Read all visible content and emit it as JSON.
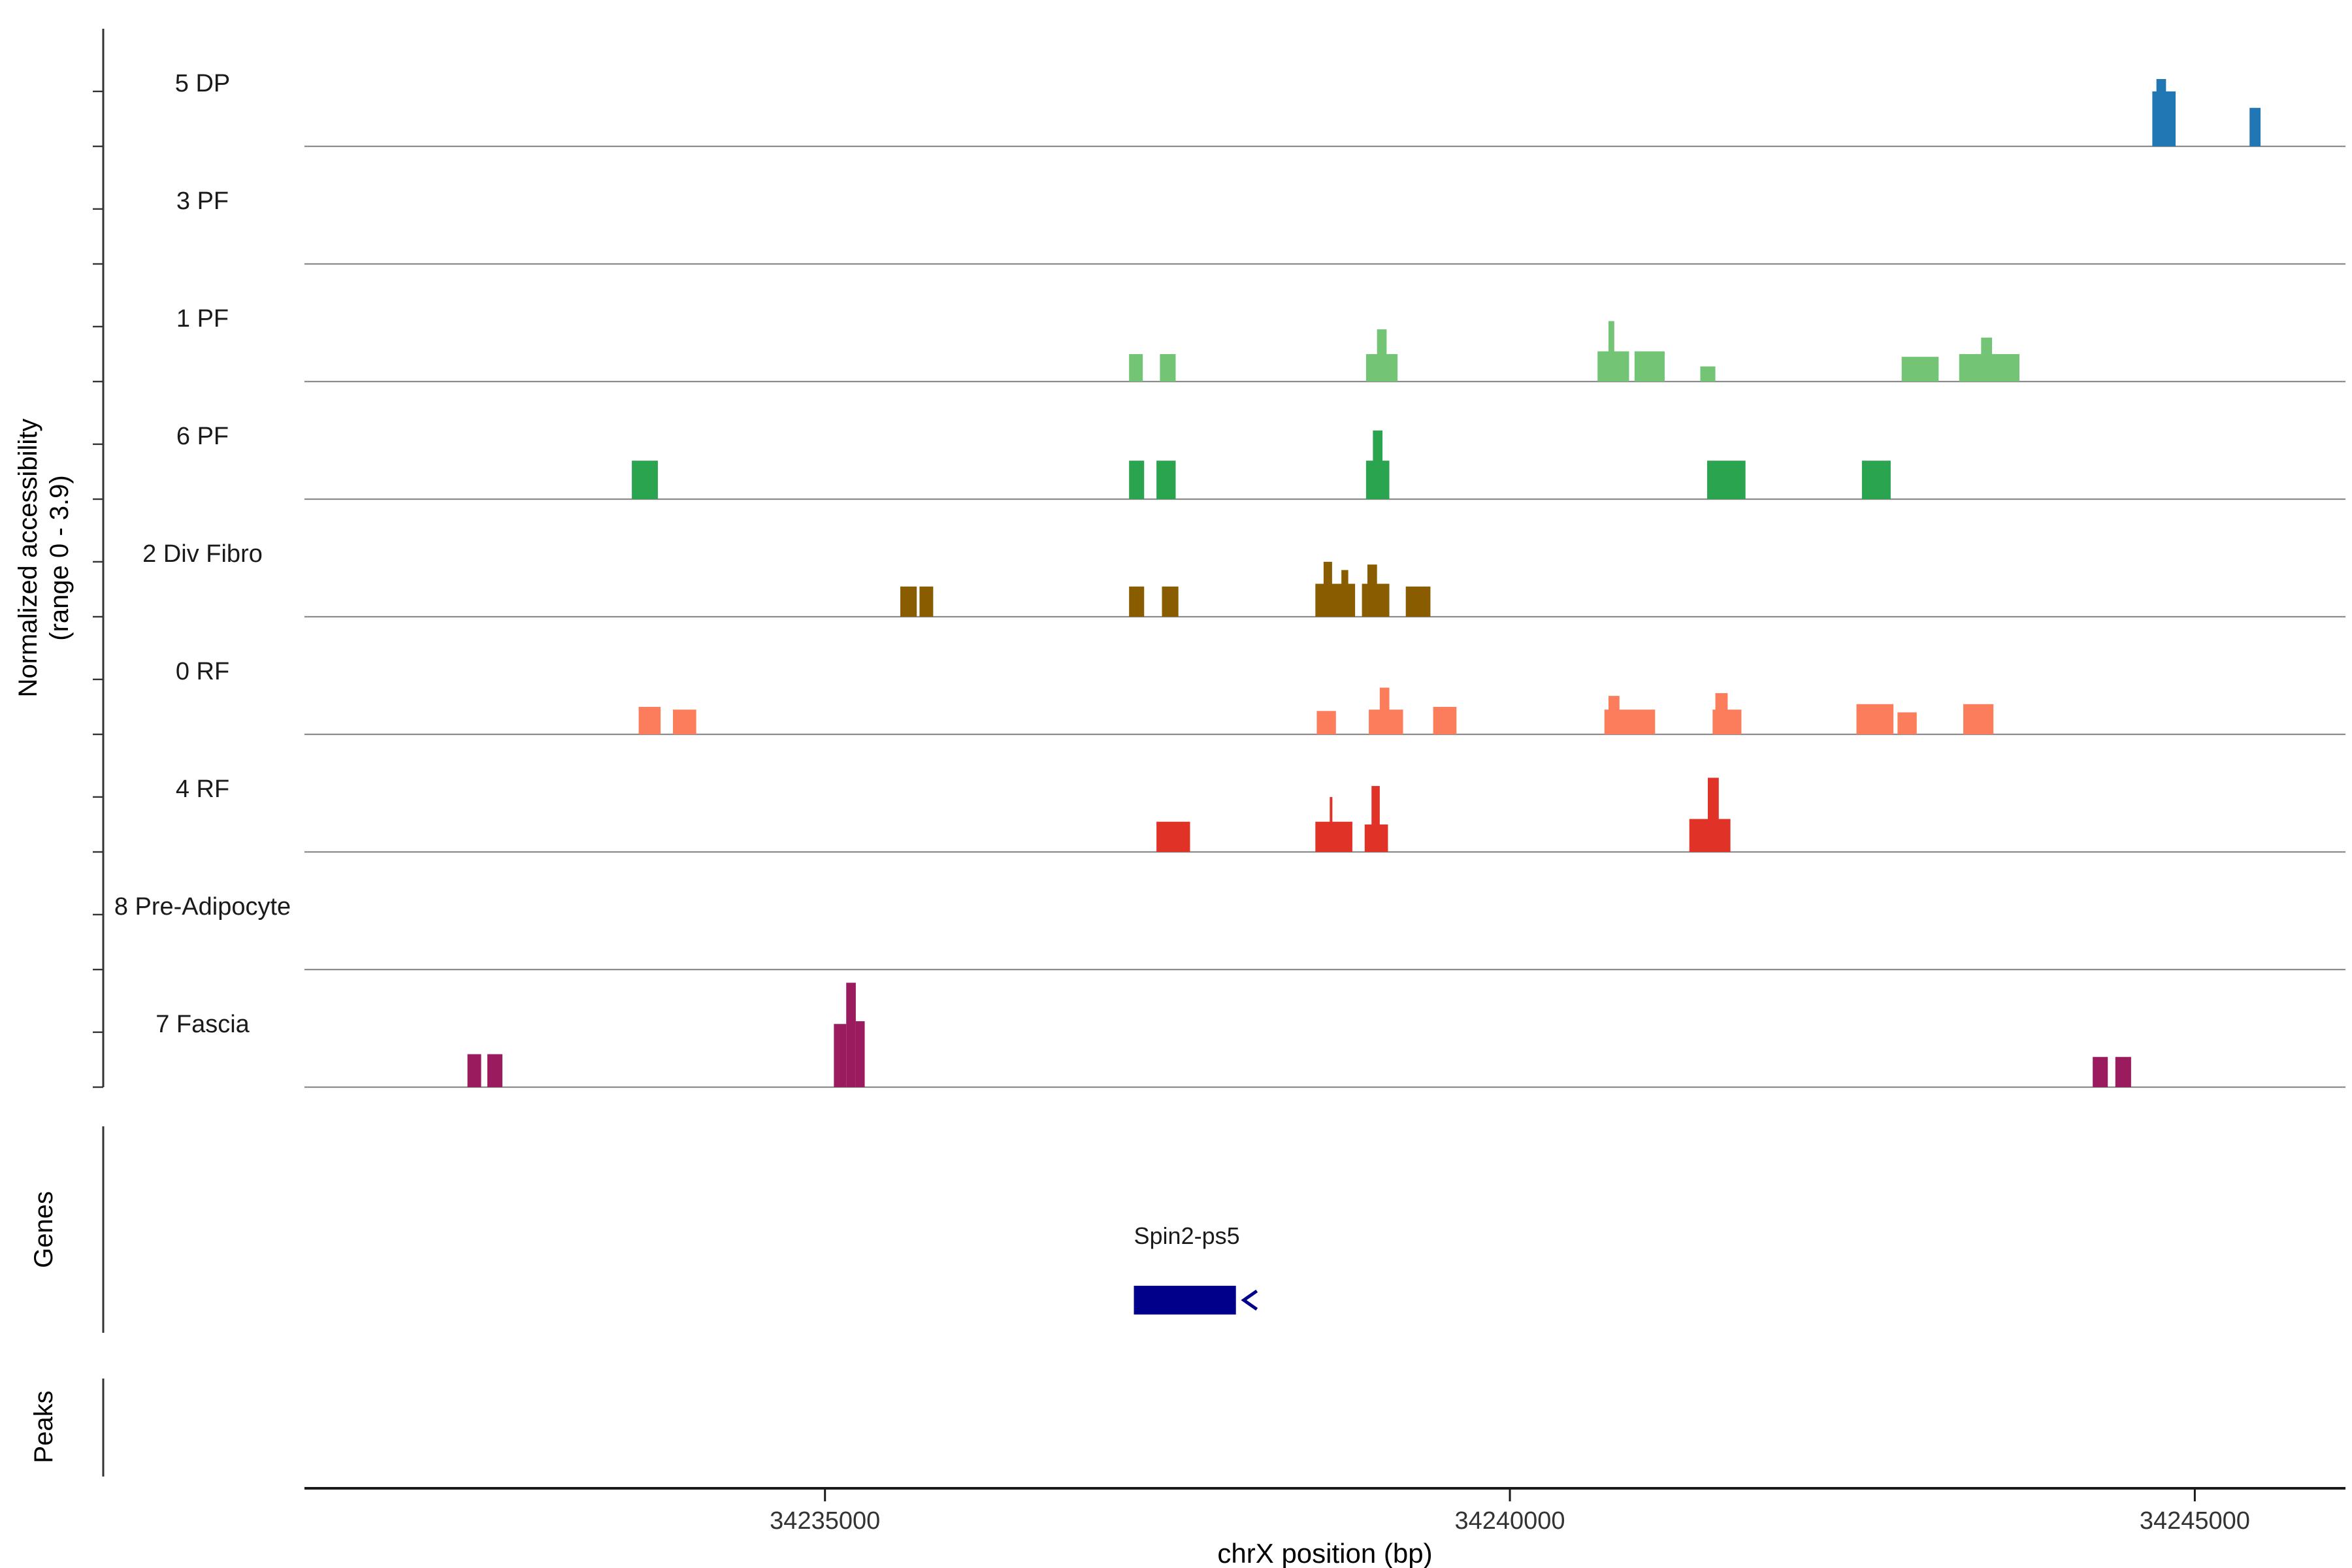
{
  "chart_data": {
    "type": "area",
    "title": "",
    "xlabel": "chrX position (bp)",
    "ylabel_lines": [
      "Normalized accessibility",
      "(range 0 - 3.9)"
    ],
    "xlim": [
      34231200,
      34246100
    ],
    "xticks": [
      {
        "value": 34235000,
        "label": "34235000"
      },
      {
        "value": 34240000,
        "label": "34240000"
      },
      {
        "value": 34245000,
        "label": "34245000"
      }
    ],
    "track_ylim": [
      0,
      3.9
    ],
    "ytick_values": [
      0,
      2
    ],
    "tracks": [
      {
        "label": "5 DP",
        "color": "#2077b4",
        "peaks": [
          [
            34244690,
            34244860,
            2.0
          ],
          [
            34244720,
            34244790,
            2.45
          ],
          [
            34245400,
            34245480,
            1.4
          ]
        ]
      },
      {
        "label": "3 PF",
        "color": "#9a9a9a",
        "peaks": []
      },
      {
        "label": "1 PF",
        "color": "#74c476",
        "peaks": [
          [
            34237220,
            34237320,
            1.0
          ],
          [
            34237445,
            34237560,
            1.0
          ],
          [
            34238950,
            34239180,
            1.0
          ],
          [
            34239030,
            34239100,
            1.9
          ],
          [
            34240640,
            34240870,
            1.1
          ],
          [
            34240720,
            34240762,
            2.2
          ],
          [
            34240910,
            34241130,
            1.1
          ],
          [
            34241390,
            34241500,
            0.55
          ],
          [
            34242860,
            34243130,
            0.9
          ],
          [
            34243280,
            34243720,
            1.0
          ],
          [
            34243440,
            34243520,
            1.6
          ]
        ]
      },
      {
        "label": "6 PF",
        "color": "#2aa44e",
        "peaks": [
          [
            34233590,
            34233780,
            1.4
          ],
          [
            34237220,
            34237330,
            1.4
          ],
          [
            34237420,
            34237560,
            1.4
          ],
          [
            34238950,
            34239120,
            1.4
          ],
          [
            34239000,
            34239070,
            2.5
          ],
          [
            34241440,
            34241720,
            1.4
          ],
          [
            34242570,
            34242780,
            1.4
          ]
        ]
      },
      {
        "label": "2 Div Fibro",
        "color": "#8a5c00",
        "peaks": [
          [
            34235550,
            34235670,
            1.1
          ],
          [
            34235690,
            34235790,
            1.1
          ],
          [
            34237220,
            34237330,
            1.1
          ],
          [
            34237460,
            34237580,
            1.1
          ],
          [
            34238580,
            34238870,
            1.2
          ],
          [
            34238640,
            34238702,
            2.0
          ],
          [
            34238770,
            34238820,
            1.7
          ],
          [
            34238920,
            34239120,
            1.2
          ],
          [
            34238960,
            34239030,
            1.9
          ],
          [
            34239240,
            34239420,
            1.1
          ]
        ]
      },
      {
        "label": "0 RF",
        "color": "#fb7d5b",
        "peaks": [
          [
            34233640,
            34233800,
            1.0
          ],
          [
            34233890,
            34234060,
            0.9
          ],
          [
            34238590,
            34238730,
            0.85
          ],
          [
            34238970,
            34239220,
            0.9
          ],
          [
            34239050,
            34239120,
            1.7
          ],
          [
            34239440,
            34239610,
            1.0
          ],
          [
            34240690,
            34241060,
            0.9
          ],
          [
            34240720,
            34240800,
            1.4
          ],
          [
            34241480,
            34241690,
            0.9
          ],
          [
            34241500,
            34241590,
            1.5
          ],
          [
            34242530,
            34242800,
            1.1
          ],
          [
            34242830,
            34242970,
            0.8
          ],
          [
            34243310,
            34243530,
            1.1
          ]
        ]
      },
      {
        "label": "4 RF",
        "color": "#e03227",
        "peaks": [
          [
            34237420,
            34237665,
            1.1
          ],
          [
            34238580,
            34238850,
            1.1
          ],
          [
            34238685,
            34238702,
            2.0
          ],
          [
            34238940,
            34239110,
            1.0
          ],
          [
            34238990,
            34239050,
            2.4
          ],
          [
            34241310,
            34241610,
            1.2
          ],
          [
            34241445,
            34241525,
            2.7
          ]
        ]
      },
      {
        "label": "8 Pre-Adipocyte",
        "color": "#9a9a9a",
        "peaks": []
      },
      {
        "label": "7 Fascia",
        "color": "#9b1b5f",
        "peaks": [
          [
            34232390,
            34232490,
            1.2
          ],
          [
            34232535,
            34232645,
            1.2
          ],
          [
            34235065,
            34235155,
            2.3
          ],
          [
            34235155,
            34235225,
            3.8
          ],
          [
            34235225,
            34235290,
            2.4
          ],
          [
            34244255,
            34244365,
            1.1
          ],
          [
            34244420,
            34244535,
            1.1
          ]
        ]
      }
    ],
    "gene_section_label": "Genes",
    "peak_section_label": "Peaks",
    "genes": [
      {
        "name": "Spin2-ps5",
        "start": 34237255,
        "end": 34238000,
        "strand": "-",
        "color": "#00008b"
      }
    ],
    "peaks_track": []
  }
}
